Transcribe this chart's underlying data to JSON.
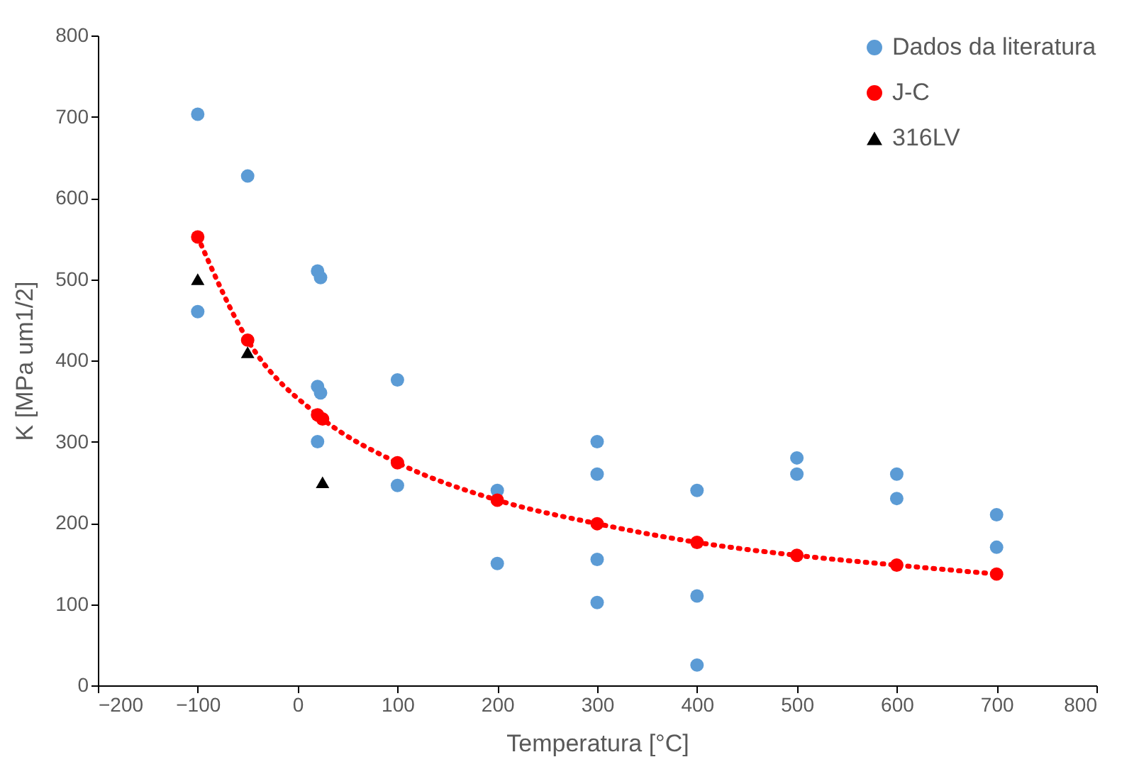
{
  "chart_data": {
    "type": "scatter",
    "xlabel": "Temperatura [°C]",
    "ylabel": "K [MPa um1/2]",
    "xlim": [
      -200,
      800
    ],
    "xticks": [
      -200,
      -100,
      0,
      100,
      200,
      300,
      400,
      500,
      600,
      700,
      800
    ],
    "ylim": [
      0,
      800
    ],
    "yticks": [
      0,
      100,
      200,
      300,
      400,
      500,
      600,
      700,
      800
    ],
    "grid": false,
    "legend": "top right",
    "series": [
      {
        "name": "Dados da literatura",
        "color": "#5b9bd5",
        "marker": "circle",
        "x": [
          -100,
          -100,
          -50,
          20,
          23,
          20,
          23,
          20,
          100,
          100,
          200,
          200,
          300,
          300,
          300,
          300,
          400,
          400,
          400,
          500,
          500,
          600,
          600,
          700,
          700
        ],
        "values": [
          703,
          460,
          627,
          510,
          502,
          368,
          360,
          300,
          376,
          246,
          240,
          150,
          300,
          260,
          155,
          102,
          240,
          110,
          25,
          280,
          260,
          260,
          230,
          210,
          170
        ]
      },
      {
        "type": "line",
        "color": "#ff0000",
        "marker": "none",
        "line_style": "dotted",
        "x": [
          -100,
          -50,
          20,
          25,
          100,
          200,
          300,
          400,
          500,
          600,
          700
        ],
        "values": [
          552,
          425,
          333,
          328,
          274,
          228,
          199,
          176,
          160,
          148,
          137
        ]
      },
      {
        "name": "J-C",
        "color": "#ff0000",
        "marker": "circle",
        "x": [
          -100,
          -50,
          20,
          25,
          100,
          200,
          300,
          400,
          500,
          600,
          700
        ],
        "values": [
          552,
          425,
          333,
          328,
          274,
          228,
          199,
          176,
          160,
          148,
          137
        ]
      },
      {
        "name": "316LV",
        "color": "#000000",
        "marker": "triangle",
        "x": [
          -100,
          -50,
          25
        ],
        "values": [
          500,
          410,
          250
        ]
      }
    ]
  }
}
